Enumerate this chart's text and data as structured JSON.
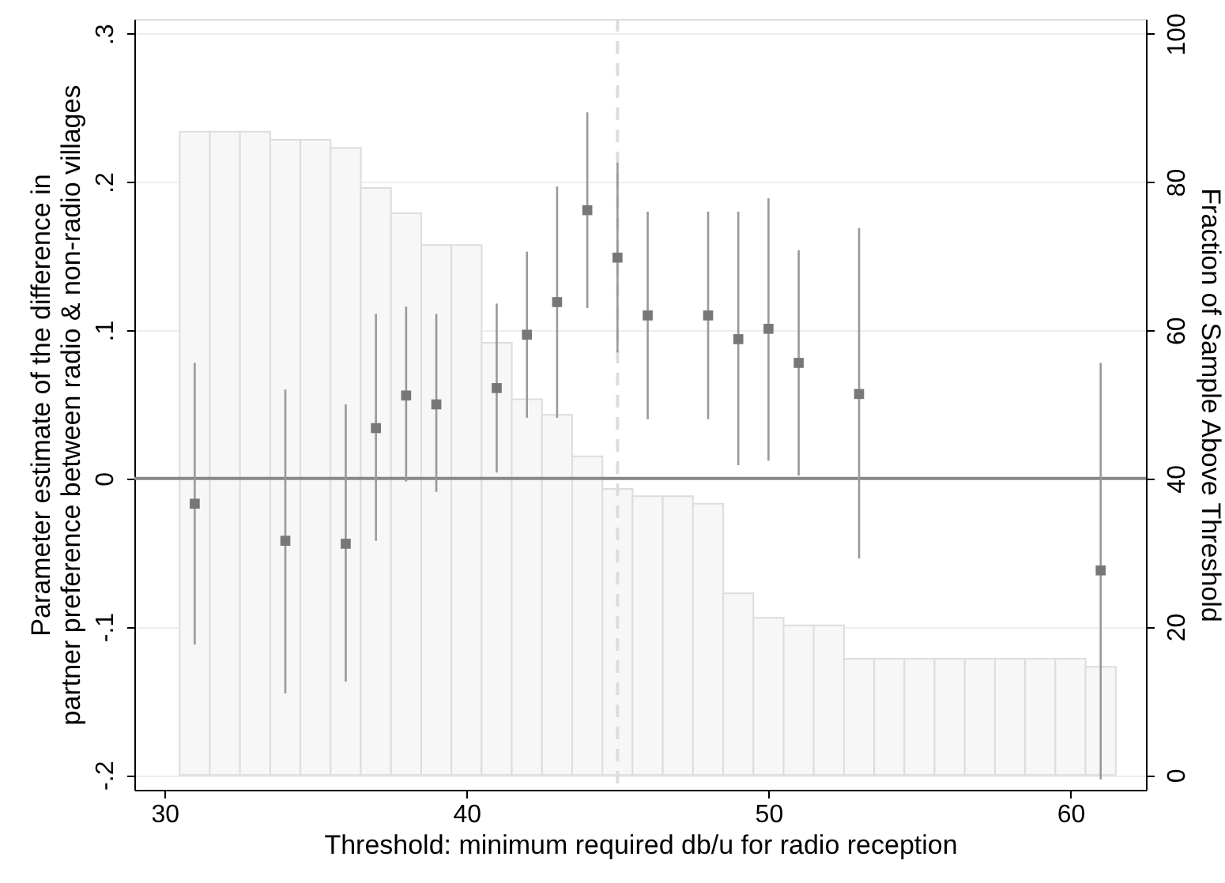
{
  "chart_data": {
    "type": "bar",
    "xlabel": "Threshold: minimum required db/u for radio reception",
    "ylabel": "Parameter estimate of the difference in\npartner preference between radio & non-radio villages",
    "y2label": "Fraction of Sample Above Threshold",
    "xlim": [
      29,
      62.5
    ],
    "xticks": [
      30,
      40,
      50,
      60
    ],
    "ylim": [
      -0.21,
      0.31
    ],
    "yticks": [
      {
        "value": -0.2,
        "label": "-.2"
      },
      {
        "value": -0.1,
        "label": "-.1"
      },
      0,
      {
        "value": 0.1,
        "label": ".1"
      },
      {
        "value": 0.2,
        "label": ".2"
      },
      {
        "value": 0.3,
        "label": ".3"
      }
    ],
    "y2lim": [
      -2,
      102
    ],
    "y2ticks": [
      0,
      20,
      40,
      60,
      80,
      100
    ],
    "grid": "y",
    "series": [
      {
        "axis": "y2",
        "color": "#f7f7f7",
        "x": [
          31,
          32,
          33,
          34,
          35,
          36,
          37,
          38,
          39,
          40,
          41,
          42,
          43,
          44,
          45,
          46,
          47,
          48,
          49,
          50,
          51,
          52,
          53,
          54,
          55,
          56,
          57,
          58,
          59,
          60,
          61
        ],
        "values": [
          86.8,
          86.8,
          86.8,
          85.7,
          85.7,
          84.6,
          79.2,
          75.8,
          71.5,
          71.5,
          58.3,
          50.7,
          48.6,
          43.0,
          38.6,
          37.6,
          37.6,
          36.6,
          24.5,
          21.2,
          20.2,
          20.2,
          15.7,
          15.7,
          15.7,
          15.7,
          15.7,
          15.7,
          15.7,
          15.7,
          14.6
        ]
      },
      {
        "type": "scatter",
        "marker": "square",
        "color": "#777777",
        "x": [
          31,
          34,
          36,
          37,
          38,
          39,
          41,
          42,
          43,
          44,
          45,
          46,
          48,
          49,
          50,
          51,
          53,
          61
        ],
        "values": [
          -0.017,
          -0.042,
          -0.044,
          0.034,
          0.056,
          0.05,
          0.061,
          0.097,
          0.119,
          0.181,
          0.149,
          0.11,
          0.11,
          0.094,
          0.101,
          0.078,
          0.057,
          -0.062
        ],
        "errors": [
          [
            -0.112,
            0.078
          ],
          [
            -0.145,
            0.06
          ],
          [
            -0.137,
            0.05
          ],
          [
            -0.042,
            0.111
          ],
          [
            -0.002,
            0.116
          ],
          [
            -0.009,
            0.111
          ],
          [
            0.004,
            0.118
          ],
          [
            0.041,
            0.153
          ],
          [
            0.041,
            0.197
          ],
          [
            0.115,
            0.247
          ],
          [
            0.085,
            0.213
          ],
          [
            0.04,
            0.18
          ],
          [
            0.04,
            0.18
          ],
          [
            0.009,
            0.18
          ],
          [
            0.012,
            0.189
          ],
          [
            0.002,
            0.154
          ],
          [
            -0.054,
            0.169
          ],
          [
            -0.203,
            0.078
          ]
        ]
      }
    ],
    "ref_lines": [
      {
        "axis": "y",
        "value": 0,
        "color": "#888888",
        "line_style": "solid"
      },
      {
        "axis": "x",
        "value": 45,
        "color": "#dddddd",
        "line_style": "dashed"
      }
    ]
  }
}
